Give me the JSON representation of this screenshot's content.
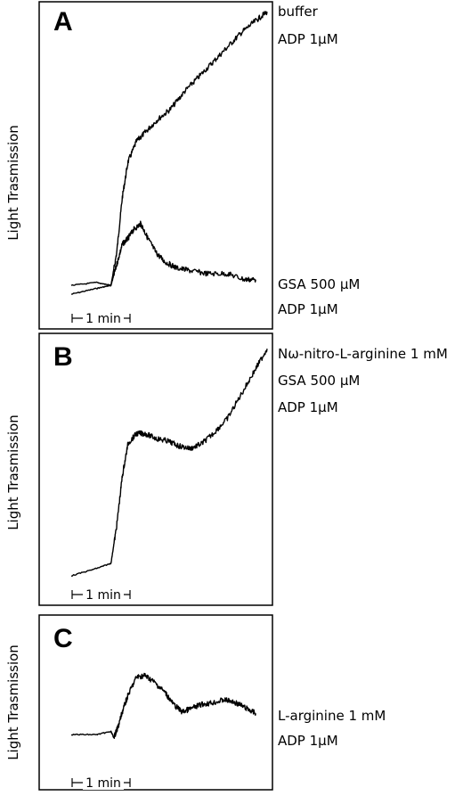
{
  "chart_data": [
    {
      "type": "line",
      "panel": "A",
      "ylabel": "Light Trasmission",
      "scale_bar": "1 min",
      "x_unit": "min",
      "series": [
        {
          "name": "buffer / ADP 1µM",
          "x": [
            0,
            0.9,
            1.4,
            1.6,
            1.8,
            2.0,
            2.3,
            2.6,
            3.0,
            3.5,
            4.0,
            4.5,
            5.0,
            5.5,
            6.0,
            6.5,
            6.9
          ],
          "y": [
            0.03,
            0.05,
            0.06,
            0.17,
            0.36,
            0.48,
            0.55,
            0.58,
            0.62,
            0.66,
            0.72,
            0.77,
            0.82,
            0.87,
            0.92,
            0.96,
            0.99
          ]
        },
        {
          "name": "GSA 500 µM / ADP 1µM",
          "x": [
            0,
            0.9,
            1.4,
            1.6,
            1.8,
            2.0,
            2.2,
            2.45,
            2.7,
            3.0,
            3.3,
            3.7,
            4.2,
            4.8,
            5.5,
            6.1,
            6.5
          ],
          "y": [
            0.06,
            0.07,
            0.06,
            0.13,
            0.2,
            0.22,
            0.25,
            0.27,
            0.22,
            0.17,
            0.14,
            0.12,
            0.11,
            0.1,
            0.1,
            0.08,
            0.08
          ]
        }
      ],
      "annotations": [
        {
          "text": "buffer",
          "series": 0
        },
        {
          "text": "ADP 1µM",
          "series": 0
        },
        {
          "text": "GSA 500 µM",
          "series": 1
        },
        {
          "text": "ADP 1µM",
          "series": 1
        }
      ]
    },
    {
      "type": "line",
      "panel": "B",
      "ylabel": "Light Trasmission",
      "scale_bar": "1 min",
      "x_unit": "min",
      "series": [
        {
          "name": "Nω-nitro-L-arginine 1 mM / GSA 500 µM / ADP 1µM",
          "x": [
            0,
            0.9,
            1.4,
            1.6,
            1.8,
            2.0,
            2.3,
            2.6,
            3.0,
            3.4,
            3.8,
            4.2,
            4.6,
            5.0,
            5.5,
            6.0,
            6.5,
            6.9
          ],
          "y": [
            0.05,
            0.08,
            0.1,
            0.25,
            0.45,
            0.58,
            0.62,
            0.62,
            0.6,
            0.59,
            0.57,
            0.56,
            0.58,
            0.62,
            0.68,
            0.78,
            0.88,
            0.96
          ]
        }
      ],
      "annotations": [
        {
          "text": "Nω-nitro-L-arginine 1 mM",
          "series": 0
        },
        {
          "text": "GSA 500 µM",
          "series": 0
        },
        {
          "text": "ADP 1µM",
          "series": 0
        }
      ]
    },
    {
      "type": "line",
      "panel": "C",
      "ylabel": "Light Trasmission",
      "scale_bar": "1 min",
      "x_unit": "min",
      "series": [
        {
          "name": "L-arginine 1 mM / ADP 1µM",
          "x": [
            0,
            0.9,
            1.4,
            1.5,
            1.65,
            1.8,
            2.0,
            2.3,
            2.6,
            2.9,
            3.3,
            3.6,
            3.9,
            4.2,
            4.6,
            5.0,
            5.4,
            5.8,
            6.2,
            6.5
          ],
          "y": [
            0.27,
            0.27,
            0.29,
            0.25,
            0.32,
            0.42,
            0.53,
            0.65,
            0.66,
            0.62,
            0.55,
            0.47,
            0.42,
            0.44,
            0.47,
            0.48,
            0.5,
            0.48,
            0.44,
            0.41
          ]
        }
      ],
      "annotations": [
        {
          "text": "L-arginine 1 mM",
          "series": 0
        },
        {
          "text": "ADP 1µM",
          "series": 0
        }
      ]
    }
  ]
}
